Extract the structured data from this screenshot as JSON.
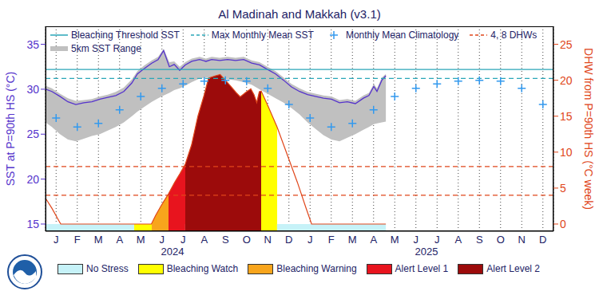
{
  "chart_data": {
    "type": "line",
    "title": "Al Madinah and Makkah (v3.1)",
    "ylabel": "SST at P=90th HS (°C)",
    "y2label": "DHW from P=90th HS (°C week)",
    "xlim": [
      0,
      24
    ],
    "xticks": [
      {
        "value": 0.5,
        "label": "J"
      },
      {
        "value": 1.5,
        "label": "F"
      },
      {
        "value": 2.5,
        "label": "M"
      },
      {
        "value": 3.5,
        "label": "A"
      },
      {
        "value": 4.5,
        "label": "M"
      },
      {
        "value": 5.5,
        "label": "J"
      },
      {
        "value": 6.5,
        "label": "J"
      },
      {
        "value": 7.5,
        "label": "A"
      },
      {
        "value": 8.5,
        "label": "S"
      },
      {
        "value": 9.5,
        "label": "O"
      },
      {
        "value": 10.5,
        "label": "N"
      },
      {
        "value": 11.5,
        "label": "D"
      },
      {
        "value": 12.5,
        "label": "J"
      },
      {
        "value": 13.5,
        "label": "F"
      },
      {
        "value": 14.5,
        "label": "M"
      },
      {
        "value": 15.5,
        "label": "A"
      },
      {
        "value": 16.5,
        "label": "M"
      },
      {
        "value": 17.5,
        "label": "J"
      },
      {
        "value": 18.5,
        "label": "J"
      },
      {
        "value": 19.5,
        "label": "A"
      },
      {
        "value": 20.5,
        "label": "S"
      },
      {
        "value": 21.5,
        "label": "O"
      },
      {
        "value": 22.5,
        "label": "N"
      },
      {
        "value": 23.5,
        "label": "D"
      }
    ],
    "ylim": [
      14.2,
      37
    ],
    "yticks": [
      15,
      20,
      25,
      30,
      35
    ],
    "y2lim": [
      -1,
      27.5
    ],
    "y2ticks": [
      0,
      5,
      10,
      15,
      20,
      25
    ],
    "grid": "x",
    "annotations": [
      {
        "x": 6,
        "text": "2024"
      },
      {
        "x": 18,
        "text": "2025"
      }
    ],
    "series": [
      {
        "type": "line",
        "color": "#5533cc",
        "x": [
          0,
          0.3,
          0.68,
          1.06,
          1.43,
          1.81,
          2.19,
          2.57,
          2.94,
          3.32,
          3.7,
          4.08,
          4.34,
          4.64,
          5.02,
          5.32,
          5.58,
          5.85,
          6.08,
          6.34,
          6.6,
          6.91,
          7.28,
          7.58,
          7.85,
          8.23,
          8.6,
          8.98,
          9.36,
          9.74,
          10.11,
          10.49,
          10.87,
          11.25,
          11.62,
          12.0,
          12.38,
          12.75,
          13.13,
          13.51,
          13.89,
          14.26,
          14.64,
          15.02,
          15.28,
          15.51,
          15.66,
          15.89,
          16.08
        ],
        "values": [
          30.0,
          29.75,
          29.2,
          28.6,
          28.3,
          28.5,
          28.6,
          28.9,
          29.1,
          29.3,
          29.75,
          30.7,
          31.7,
          32.25,
          32.9,
          33.3,
          34.3,
          32.5,
          32.75,
          32.1,
          32.7,
          33.1,
          33.3,
          33.1,
          33.3,
          33.2,
          33.3,
          33.2,
          33.3,
          32.9,
          32.7,
          32.2,
          31.7,
          31.0,
          30.25,
          29.75,
          29.4,
          29.2,
          29.0,
          28.9,
          28.5,
          28.6,
          28.4,
          29.0,
          29.3,
          30.3,
          29.75,
          31.0,
          31.5
        ]
      },
      {
        "type": "area",
        "axis": "y2",
        "color": "#e0461a",
        "x": [
          0,
          0.3,
          0.68,
          0.72,
          5.0,
          5.2,
          5.45,
          5.81,
          6.1,
          6.35,
          6.6,
          6.9,
          7.2,
          7.5,
          7.7,
          8.0,
          8.25,
          8.5,
          8.8,
          9.0,
          9.2,
          9.5,
          9.7,
          9.85,
          9.98,
          10.1,
          10.19,
          10.5,
          10.94,
          11.5,
          11.9,
          12.3,
          12.57,
          16.08
        ],
        "values": [
          3.6,
          2.2,
          0.2,
          0,
          0,
          1.2,
          2.5,
          4.2,
          5.8,
          7.0,
          8.3,
          11.0,
          15.0,
          18.0,
          20.3,
          20.6,
          20.8,
          20.0,
          19.0,
          18.3,
          17.7,
          18.4,
          18.8,
          18.0,
          16.9,
          18.4,
          18.5,
          16.5,
          13.5,
          9.0,
          5.8,
          2.3,
          0,
          0
        ]
      },
      {
        "name": "Bleaching Threshold SST",
        "type": "hline",
        "color": "#2aa6b8",
        "line_style": "solid",
        "values": [
          32.2
        ]
      },
      {
        "name": "Max Monthly Mean SST",
        "type": "hline",
        "color": "#2aa6b8",
        "line_style": "dashed",
        "values": [
          31.2
        ]
      },
      {
        "name": "Monthly Mean Climatology",
        "type": "scatter",
        "marker": "plus",
        "color": "#3399ee",
        "x": [
          0.5,
          1.5,
          2.5,
          3.5,
          4.5,
          5.5,
          6.5,
          7.5,
          8.5,
          9.5,
          10.5,
          11.5,
          12.5,
          13.5,
          14.5,
          15.5,
          16.5,
          17.5,
          18.5,
          19.5,
          20.5,
          21.5,
          22.5,
          23.5
        ],
        "values": [
          26.8,
          25.8,
          26.2,
          27.7,
          29.2,
          30.1,
          30.6,
          30.9,
          31.0,
          30.9,
          30.1,
          28.3,
          26.8,
          25.8,
          26.2,
          27.7,
          29.2,
          30.1,
          30.6,
          30.9,
          31.0,
          30.9,
          30.1,
          28.3
        ]
      },
      {
        "name": "4, 8 DHWs",
        "type": "hline",
        "axis": "y2",
        "color": "#e0461a",
        "line_style": "dashed",
        "values": [
          4,
          8
        ]
      },
      {
        "name": "5km SST Range",
        "type": "range",
        "color": "#c0c0c0",
        "x": [
          0,
          0.3,
          0.68,
          1.06,
          1.43,
          1.81,
          2.19,
          2.57,
          2.94,
          3.32,
          3.7,
          4.08,
          4.34,
          4.64,
          5.02,
          5.32,
          5.58,
          5.85,
          6.08,
          6.34,
          6.6,
          6.91,
          7.28,
          7.58,
          7.85,
          8.23,
          8.6,
          8.98,
          9.36,
          9.74,
          10.11,
          10.49,
          10.87,
          11.25,
          11.62,
          12.0,
          12.38,
          12.75,
          13.13,
          13.51,
          13.89,
          14.26,
          14.64,
          15.02,
          15.28,
          15.51,
          15.66,
          15.89,
          16.08
        ],
        "values": [
          [
            26.3,
            30.4
          ],
          [
            25.8,
            30.1
          ],
          [
            25.0,
            29.5
          ],
          [
            24.4,
            29.0
          ],
          [
            24.2,
            28.7
          ],
          [
            24.5,
            28.8
          ],
          [
            24.8,
            28.9
          ],
          [
            25.0,
            29.2
          ],
          [
            25.4,
            29.4
          ],
          [
            25.8,
            29.7
          ],
          [
            26.3,
            30.2
          ],
          [
            27.0,
            31.1
          ],
          [
            27.5,
            32.0
          ],
          [
            28.0,
            32.6
          ],
          [
            28.6,
            33.2
          ],
          [
            29.0,
            33.6
          ],
          [
            29.3,
            34.5
          ],
          [
            29.6,
            33.0
          ],
          [
            29.9,
            33.1
          ],
          [
            30.1,
            32.5
          ],
          [
            30.4,
            33.0
          ],
          [
            30.8,
            33.4
          ],
          [
            31.2,
            33.6
          ],
          [
            31.3,
            33.4
          ],
          [
            31.3,
            33.6
          ],
          [
            31.2,
            33.5
          ],
          [
            31.1,
            33.6
          ],
          [
            31.0,
            33.5
          ],
          [
            30.8,
            33.6
          ],
          [
            30.5,
            33.2
          ],
          [
            30.0,
            33.0
          ],
          [
            29.5,
            32.5
          ],
          [
            29.0,
            32.0
          ],
          [
            28.5,
            31.3
          ],
          [
            27.9,
            30.6
          ],
          [
            27.2,
            30.1
          ],
          [
            26.3,
            29.7
          ],
          [
            25.6,
            29.5
          ],
          [
            24.9,
            29.3
          ],
          [
            24.4,
            29.2
          ],
          [
            24.2,
            28.8
          ],
          [
            24.6,
            28.9
          ],
          [
            25.0,
            28.7
          ],
          [
            25.5,
            29.3
          ],
          [
            25.8,
            29.6
          ],
          [
            26.1,
            30.6
          ],
          [
            26.2,
            30.1
          ],
          [
            26.3,
            31.3
          ],
          [
            26.4,
            31.7
          ]
        ]
      }
    ],
    "stress_legend": [
      {
        "name": "No Stress",
        "color": "#c6f2f8"
      },
      {
        "name": "Bleaching Watch",
        "color": "#ffff00"
      },
      {
        "name": "Bleaching Warning",
        "color": "#f8a51c"
      },
      {
        "name": "Alert Level 1",
        "color": "#e8141e"
      },
      {
        "name": "Alert Level 2",
        "color": "#9c0b0b"
      }
    ],
    "stress_periods": [
      {
        "level": "No Stress",
        "start": 0,
        "end": 4.19
      },
      {
        "level": "Bleaching Watch",
        "start": 4.19,
        "end": 5.02
      },
      {
        "level": "Bleaching Warning",
        "start": 5.02,
        "end": 5.81
      },
      {
        "level": "Alert Level 1",
        "start": 5.81,
        "end": 6.6
      },
      {
        "level": "Alert Level 2",
        "start": 6.6,
        "end": 10.19
      },
      {
        "level": "Bleaching Watch",
        "start": 10.19,
        "end": 10.94
      },
      {
        "level": "No Stress",
        "start": 10.94,
        "end": 16.08
      }
    ]
  }
}
